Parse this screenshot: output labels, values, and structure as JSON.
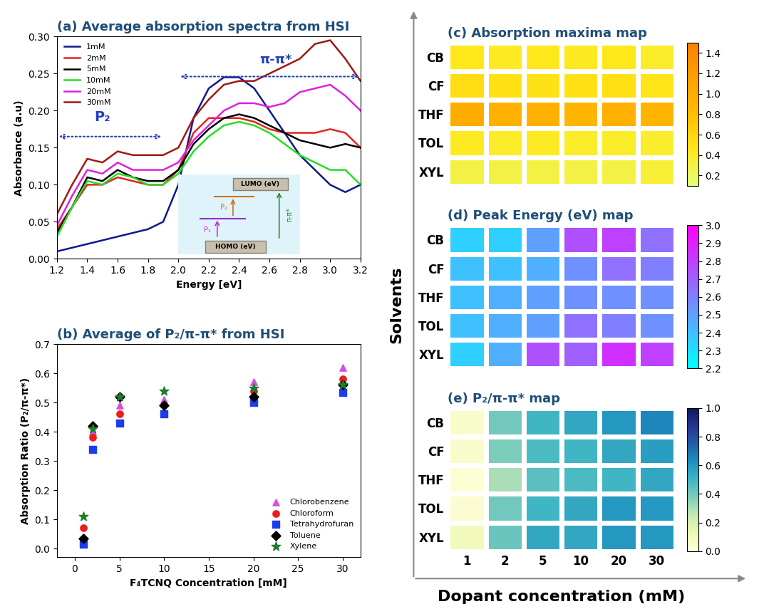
{
  "chart_data": [
    {
      "type": "line",
      "title": "(a) Average absorption spectra from HSI",
      "x_label": "Energy [eV]",
      "y_label": "Absorbance (a.u)",
      "x": [
        1.2,
        1.3,
        1.4,
        1.5,
        1.6,
        1.7,
        1.8,
        1.9,
        2.0,
        2.1,
        2.2,
        2.3,
        2.4,
        2.5,
        2.6,
        2.7,
        2.8,
        2.9,
        3.0,
        3.1,
        3.2
      ],
      "series": [
        {
          "name": "1mM",
          "color": "#0b1a8c",
          "values": [
            0.01,
            0.015,
            0.02,
            0.025,
            0.03,
            0.035,
            0.04,
            0.05,
            0.1,
            0.19,
            0.23,
            0.245,
            0.245,
            0.23,
            0.2,
            0.17,
            0.14,
            0.12,
            0.1,
            0.09,
            0.1
          ]
        },
        {
          "name": "2mM",
          "color": "#e8231f",
          "values": [
            0.04,
            0.07,
            0.1,
            0.1,
            0.11,
            0.105,
            0.1,
            0.1,
            0.12,
            0.17,
            0.19,
            0.19,
            0.19,
            0.185,
            0.175,
            0.17,
            0.17,
            0.17,
            0.175,
            0.17,
            0.15
          ]
        },
        {
          "name": "5mM",
          "color": "#000000",
          "values": [
            0.035,
            0.07,
            0.11,
            0.105,
            0.12,
            0.11,
            0.105,
            0.105,
            0.12,
            0.155,
            0.175,
            0.19,
            0.195,
            0.19,
            0.18,
            0.17,
            0.16,
            0.155,
            0.15,
            0.155,
            0.15
          ]
        },
        {
          "name": "10mM",
          "color": "#22e022",
          "values": [
            0.03,
            0.07,
            0.105,
            0.1,
            0.115,
            0.11,
            0.1,
            0.1,
            0.115,
            0.145,
            0.165,
            0.18,
            0.185,
            0.18,
            0.17,
            0.155,
            0.14,
            0.13,
            0.12,
            0.12,
            0.1
          ]
        },
        {
          "name": "20mM",
          "color": "#e020e0",
          "values": [
            0.045,
            0.085,
            0.12,
            0.115,
            0.13,
            0.12,
            0.12,
            0.12,
            0.13,
            0.16,
            0.18,
            0.2,
            0.21,
            0.21,
            0.205,
            0.21,
            0.225,
            0.23,
            0.235,
            0.22,
            0.2
          ]
        },
        {
          "name": "30mM",
          "color": "#a01818",
          "values": [
            0.06,
            0.1,
            0.135,
            0.13,
            0.145,
            0.14,
            0.14,
            0.14,
            0.15,
            0.19,
            0.215,
            0.235,
            0.24,
            0.24,
            0.25,
            0.26,
            0.27,
            0.29,
            0.295,
            0.27,
            0.24
          ]
        }
      ],
      "xlim": [
        1.2,
        3.2
      ],
      "xticks": [
        1.2,
        1.4,
        1.6,
        1.8,
        {
          "value": 2.0,
          "label": "2.0"
        },
        2.2,
        2.4,
        2.6,
        2.8,
        {
          "value": 3.0,
          "label": "3.0"
        },
        3.2
      ],
      "ylim": [
        0,
        0.3
      ],
      "yticks": [
        {
          "value": 0,
          "label": "0.00"
        },
        {
          "value": 0.05,
          "label": "0.05"
        },
        {
          "value": 0.1,
          "label": "0.10"
        },
        {
          "value": 0.15,
          "label": "0.15"
        },
        {
          "value": 0.2,
          "label": "0.20"
        },
        {
          "value": 0.25,
          "label": "0.25"
        },
        {
          "value": 0.3,
          "label": "0.30"
        }
      ],
      "legend": "upper left",
      "annotations": [
        "P₂",
        "π-π*"
      ],
      "diagram": {
        "lumo": "LUMO (eV)",
        "homo": "HOMO (eV)",
        "transitions": [
          "P₁",
          "P₂",
          "π-π*"
        ]
      }
    },
    {
      "type": "scatter",
      "title": "(b) Average of P₂/π-π* from HSI",
      "x_label": "F₄TCNQ Concentration [mM]",
      "y_label": "Absorption Ratio (P₂/π-π*)",
      "x": [
        1,
        2,
        5,
        10,
        20,
        30
      ],
      "series": [
        {
          "name": "Chlorobenzene",
          "color": "#d84ee0",
          "marker": "triangle",
          "values": [
            0.03,
            0.4,
            0.49,
            0.51,
            0.57,
            0.62
          ]
        },
        {
          "name": "Chloroform",
          "color": "#ee1c1c",
          "marker": "circle",
          "values": [
            0.07,
            0.38,
            0.46,
            0.49,
            0.54,
            0.58
          ]
        },
        {
          "name": "Tetrahydrofuran",
          "color": "#1c3cee",
          "marker": "square",
          "values": [
            0.015,
            0.34,
            0.43,
            0.46,
            0.5,
            0.535
          ]
        },
        {
          "name": "Toluene",
          "color": "#000000",
          "marker": "diamond",
          "values": [
            0.035,
            0.42,
            0.52,
            0.49,
            0.52,
            0.56
          ]
        },
        {
          "name": "Xylene",
          "color": "#1e7d2a",
          "marker": "star",
          "values": [
            0.11,
            0.41,
            0.52,
            0.54,
            0.55,
            0.56
          ]
        }
      ],
      "xlim": [
        -2,
        32
      ],
      "xticks": [
        0,
        5,
        10,
        15,
        20,
        25,
        30
      ],
      "ylim": [
        -0.03,
        0.7
      ],
      "yticks": [
        {
          "value": 0,
          "label": "0.0"
        },
        0.1,
        0.2,
        0.3,
        0.4,
        0.5,
        0.6,
        0.7
      ],
      "legend": "lower right"
    },
    {
      "type": "heatmap",
      "title": "(c) Absorption maxima map",
      "color": "Wistia",
      "tick_labels": "y",
      "rows": [
        "CB",
        "CF",
        "THF",
        "TOL",
        "XYL"
      ],
      "columns": [
        "1",
        "2",
        "5",
        "10",
        "20",
        "30"
      ],
      "cells": [
        [
          0.45,
          0.42,
          0.45,
          0.43,
          0.45,
          0.4
        ],
        [
          0.55,
          0.5,
          0.5,
          0.5,
          0.52,
          0.48
        ],
        [
          1.0,
          0.95,
          0.95,
          0.9,
          0.95,
          0.9
        ],
        [
          0.42,
          0.4,
          0.42,
          0.4,
          0.4,
          0.38
        ],
        [
          0.3,
          0.3,
          0.3,
          0.3,
          0.3,
          0.35
        ]
      ],
      "colorbar_range": [
        0.1,
        1.5
      ],
      "colorbar_ticks": [
        0.2,
        0.4,
        0.6,
        0.8,
        {
          "value": 1.0,
          "label": "1.0"
        },
        1.2,
        1.4
      ]
    },
    {
      "type": "heatmap",
      "title": "(d) Peak Energy (eV) map",
      "color": "cool",
      "tick_labels": "y",
      "y_label": "Solvents",
      "rows": [
        "CB",
        "CF",
        "THF",
        "TOL",
        "XYL"
      ],
      "columns": [
        "1",
        "2",
        "5",
        "10",
        "20",
        "30"
      ],
      "cells": [
        [
          2.35,
          2.35,
          2.5,
          2.75,
          2.8,
          2.65
        ],
        [
          2.4,
          2.4,
          2.45,
          2.55,
          2.65,
          2.6
        ],
        [
          2.4,
          2.45,
          2.5,
          2.55,
          2.55,
          2.55
        ],
        [
          2.4,
          2.45,
          2.5,
          2.65,
          2.6,
          2.55
        ],
        [
          2.35,
          2.45,
          2.75,
          2.7,
          2.85,
          2.8
        ]
      ],
      "colorbar_range": [
        2.2,
        3.0
      ],
      "colorbar_ticks": [
        2.2,
        2.3,
        2.4,
        2.5,
        2.6,
        2.7,
        2.8,
        2.9,
        {
          "value": 3.0,
          "label": "3.0"
        }
      ]
    },
    {
      "type": "heatmap",
      "title": "(e) P₂/π-π* map",
      "color": "YlGnBu",
      "x_label": "Dopant concentration (mM)",
      "rows": [
        "CB",
        "CF",
        "THF",
        "TOL",
        "XYL"
      ],
      "columns": [
        "1",
        "2",
        "5",
        "10",
        "20",
        "30"
      ],
      "cells": [
        [
          0.05,
          0.4,
          0.5,
          0.55,
          0.6,
          0.65
        ],
        [
          0.05,
          0.38,
          0.48,
          0.5,
          0.55,
          0.58
        ],
        [
          0.02,
          0.3,
          0.45,
          0.48,
          0.5,
          0.55
        ],
        [
          0.03,
          0.4,
          0.5,
          0.55,
          0.6,
          0.6
        ],
        [
          0.1,
          0.42,
          0.55,
          0.55,
          0.6,
          0.6
        ]
      ],
      "colorbar_range": [
        0.0,
        1.0
      ],
      "colorbar_ticks": [
        {
          "value": 0.0,
          "label": "0.0"
        },
        0.2,
        0.4,
        0.6,
        0.8,
        {
          "value": 1.0,
          "label": "1.0"
        }
      ]
    }
  ]
}
